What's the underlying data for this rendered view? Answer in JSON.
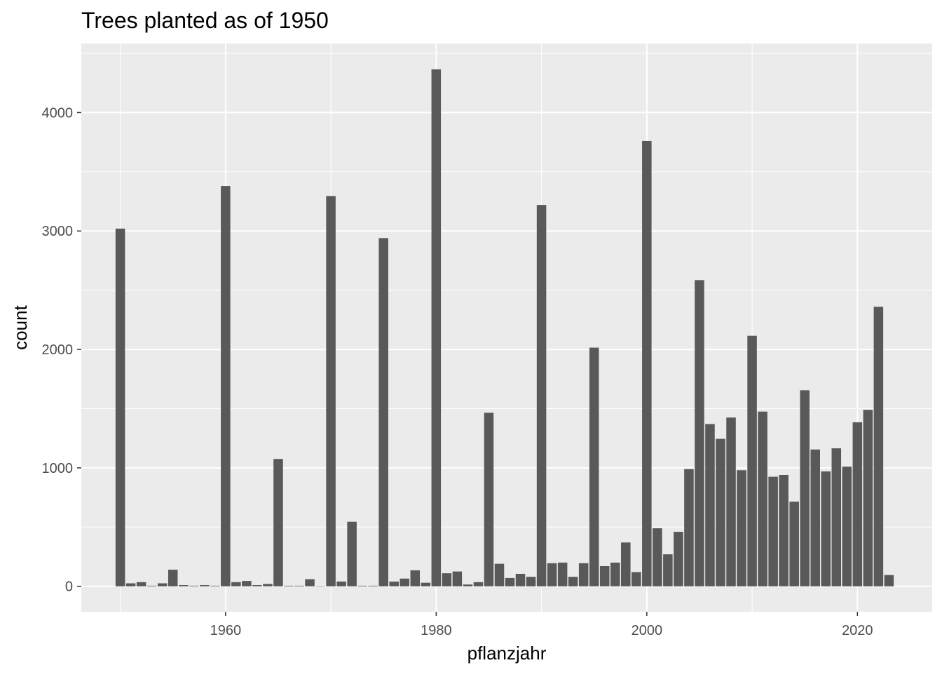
{
  "chart_data": {
    "type": "bar",
    "title": "Trees planted as of 1950",
    "xlabel": "pflanzjahr",
    "ylabel": "count",
    "xlim": [
      1946.3,
      2027.1
    ],
    "ylim": [
      -215,
      4583
    ],
    "x_ticks": [
      1960,
      1980,
      2000,
      2020
    ],
    "y_ticks": [
      0,
      1000,
      2000,
      3000,
      4000
    ],
    "x_tick_labels": [
      "1960",
      "1980",
      "2000",
      "2020"
    ],
    "y_tick_labels": [
      "0",
      "1000",
      "2000",
      "3000",
      "4000"
    ],
    "grid": true,
    "legend": "none",
    "colors": {
      "panel": "#ebebeb",
      "grid_major": "#ffffff",
      "bar": "#595959",
      "axis_text": "#4d4d4d",
      "title": "#000000"
    },
    "x": [
      1950,
      1951,
      1952,
      1953,
      1954,
      1955,
      1956,
      1957,
      1958,
      1959,
      1960,
      1961,
      1962,
      1963,
      1964,
      1965,
      1966,
      1967,
      1968,
      1969,
      1970,
      1971,
      1972,
      1973,
      1974,
      1975,
      1976,
      1977,
      1978,
      1979,
      1980,
      1981,
      1982,
      1983,
      1984,
      1985,
      1986,
      1987,
      1988,
      1989,
      1990,
      1991,
      1992,
      1993,
      1994,
      1995,
      1996,
      1997,
      1998,
      1999,
      2000,
      2001,
      2002,
      2003,
      2004,
      2005,
      2006,
      2007,
      2008,
      2009,
      2010,
      2011,
      2012,
      2013,
      2014,
      2015,
      2016,
      2017,
      2018,
      2019,
      2020,
      2021,
      2022,
      2023
    ],
    "values": [
      3020,
      25,
      35,
      5,
      25,
      140,
      10,
      5,
      10,
      5,
      3380,
      35,
      45,
      10,
      20,
      1075,
      5,
      5,
      60,
      0,
      3295,
      40,
      545,
      5,
      5,
      2940,
      40,
      65,
      135,
      30,
      4365,
      110,
      125,
      15,
      35,
      1465,
      190,
      70,
      105,
      80,
      3220,
      195,
      200,
      80,
      195,
      2015,
      170,
      200,
      370,
      120,
      3760,
      490,
      270,
      460,
      990,
      2585,
      1370,
      1245,
      1425,
      980,
      2115,
      1475,
      925,
      940,
      715,
      1655,
      1155,
      970,
      1165,
      1010,
      1385,
      1490,
      2360,
      95
    ]
  }
}
